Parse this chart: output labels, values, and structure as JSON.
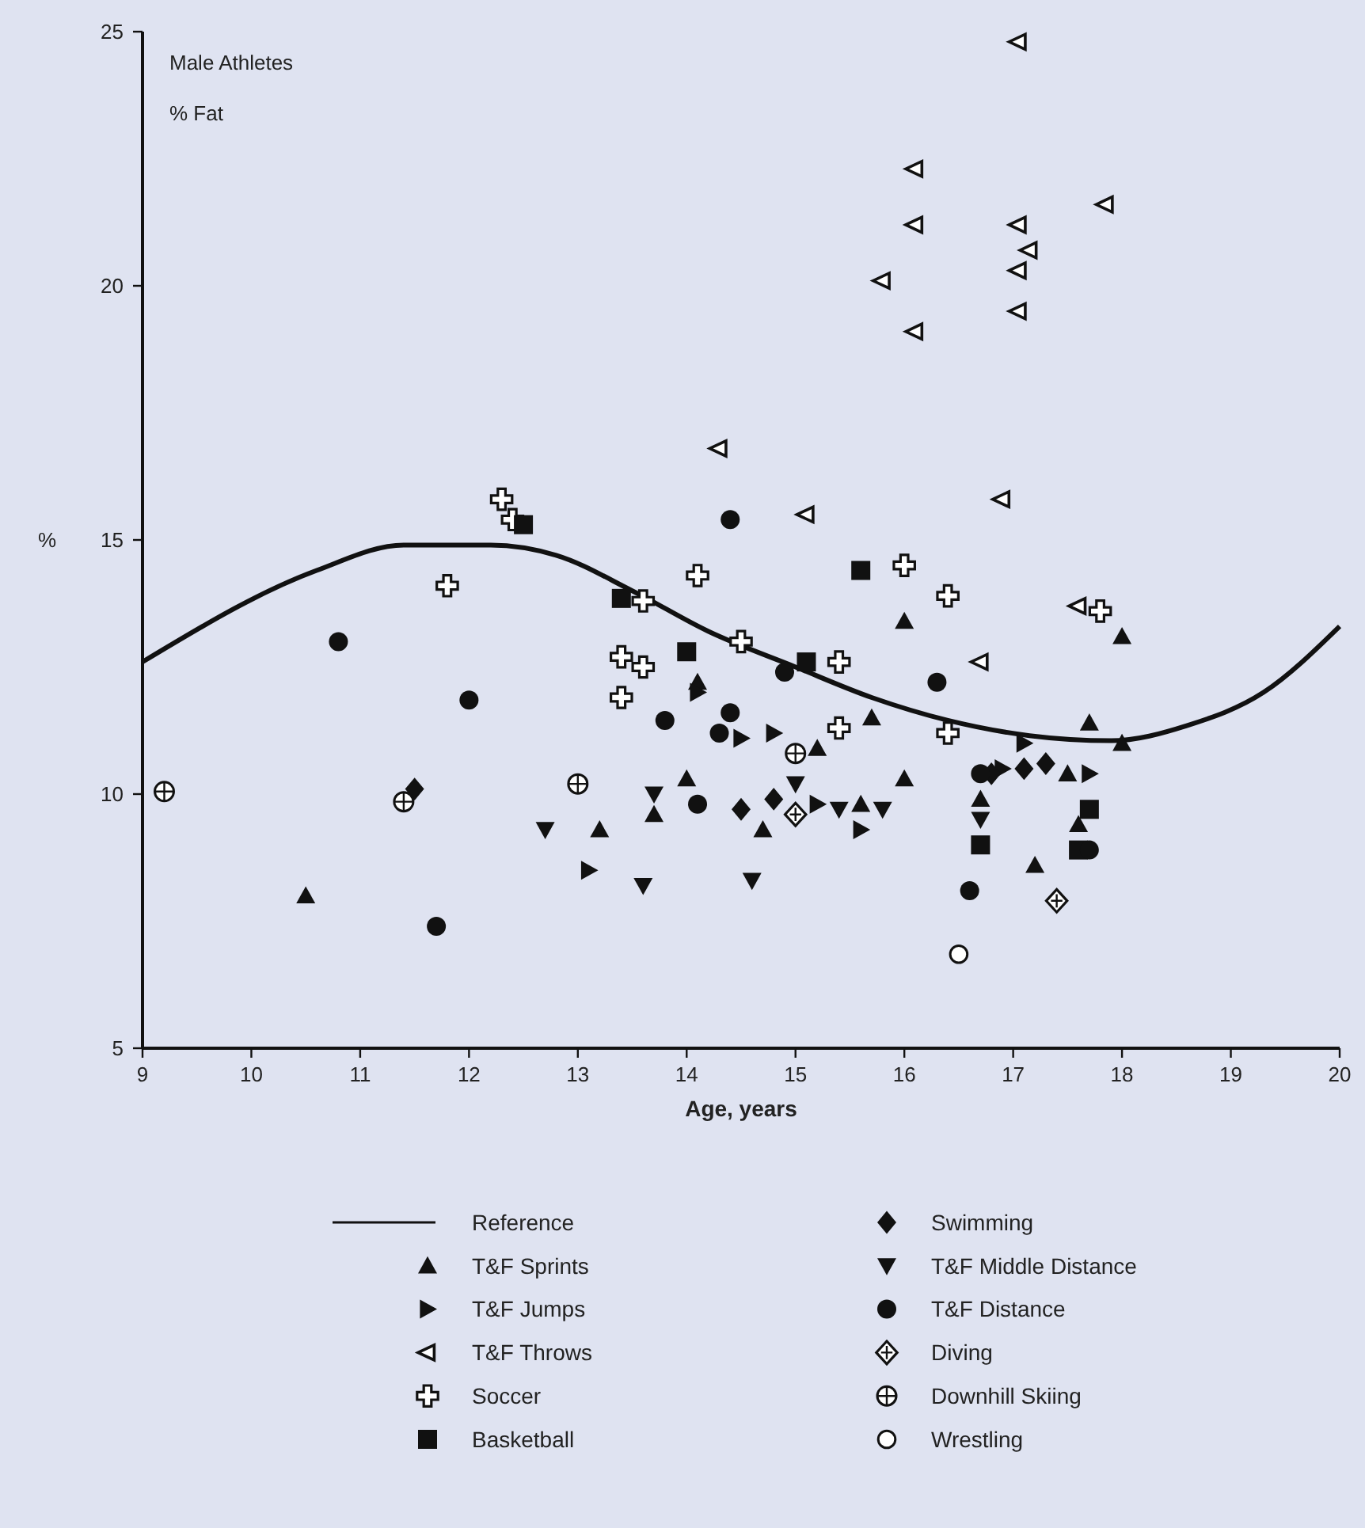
{
  "chart_data": {
    "type": "scatter",
    "xlabel": "Age, years",
    "ylabel": "%",
    "annotations": [
      "Male Athletes",
      "% Fat"
    ],
    "xlim": [
      9,
      20
    ],
    "xticks": [
      9,
      10,
      11,
      12,
      13,
      14,
      15,
      16,
      17,
      18,
      19,
      20
    ],
    "ylim": [
      5,
      25
    ],
    "yticks": [
      5,
      10,
      15,
      20,
      25
    ],
    "grid": false,
    "legend": "bottom",
    "series": [
      {
        "name": "Reference",
        "type": "line",
        "color": "#111111",
        "marker": "none",
        "line_style": "solid",
        "x": [
          9,
          10.6,
          11.4,
          12.2,
          12.8,
          13.5,
          14.2,
          15,
          15.7,
          16.4,
          17.15,
          17.9,
          18.6,
          19.3,
          20
        ],
        "values": [
          12.6,
          14.4,
          14.9,
          14.9,
          14.7,
          14.0,
          13.2,
          12.5,
          11.9,
          11.45,
          11.15,
          11.05,
          11.35,
          12.0,
          13.3
        ]
      },
      {
        "name": "T&F Sprints",
        "color": "#111111",
        "marker": "triangle-up",
        "x": [
          10.5,
          13.2,
          13.7,
          14.0,
          14.1,
          14.7,
          15.2,
          15.6,
          15.7,
          16.0,
          16.0,
          16.7,
          17.2,
          17.5,
          17.6,
          17.7,
          18.0,
          18.0
        ],
        "values": [
          8.0,
          9.3,
          9.6,
          10.3,
          12.2,
          9.3,
          10.9,
          9.8,
          11.5,
          13.4,
          10.3,
          9.9,
          8.6,
          10.4,
          9.4,
          11.4,
          13.1,
          11.0
        ]
      },
      {
        "name": "T&F Jumps",
        "color": "#111111",
        "marker": "triangle-right",
        "x": [
          13.1,
          14.1,
          14.5,
          14.8,
          15.2,
          15.6,
          16.9,
          17.1,
          17.7
        ],
        "values": [
          8.5,
          12.0,
          11.1,
          11.2,
          9.8,
          9.3,
          10.5,
          11.0,
          10.4
        ]
      },
      {
        "name": "T&F Throws",
        "color": "#111111",
        "marker": "triangle-left-open",
        "x": [
          14.3,
          15.1,
          15.8,
          16.1,
          16.1,
          16.1,
          16.7,
          16.9,
          17.05,
          17.05,
          17.05,
          17.05,
          17.15,
          17.6,
          17.85
        ],
        "values": [
          16.8,
          15.5,
          20.1,
          22.3,
          21.2,
          19.1,
          12.6,
          15.8,
          24.8,
          21.2,
          20.3,
          19.5,
          20.7,
          13.7,
          21.6
        ]
      },
      {
        "name": "Soccer",
        "color": "#111111",
        "marker": "cross-open",
        "x": [
          11.8,
          12.3,
          12.4,
          13.4,
          13.4,
          13.6,
          13.6,
          14.1,
          14.5,
          15.4,
          15.4,
          16.0,
          16.4,
          16.4,
          17.8
        ],
        "values": [
          14.1,
          15.8,
          15.4,
          12.7,
          11.9,
          12.5,
          13.8,
          14.3,
          13.0,
          12.6,
          11.3,
          14.5,
          13.9,
          11.2,
          13.6
        ]
      },
      {
        "name": "Basketball",
        "color": "#111111",
        "marker": "square",
        "x": [
          12.5,
          13.4,
          14.0,
          15.1,
          15.6,
          16.7,
          17.7,
          17.6
        ],
        "values": [
          15.3,
          13.85,
          12.8,
          12.6,
          14.4,
          9.0,
          9.7,
          8.9
        ]
      },
      {
        "name": "Swimming",
        "color": "#111111",
        "marker": "diamond",
        "x": [
          11.5,
          14.5,
          14.8,
          16.8,
          17.1,
          17.3
        ],
        "values": [
          10.1,
          9.7,
          9.9,
          10.4,
          10.5,
          10.6
        ]
      },
      {
        "name": "T&F Middle Distance",
        "color": "#111111",
        "marker": "triangle-down",
        "x": [
          12.7,
          13.6,
          13.7,
          14.6,
          15.0,
          15.4,
          15.8,
          16.7
        ],
        "values": [
          9.3,
          8.2,
          10.0,
          8.3,
          10.2,
          9.7,
          9.7,
          9.5
        ]
      },
      {
        "name": "T&F Distance",
        "color": "#111111",
        "marker": "circle",
        "x": [
          10.8,
          11.7,
          12.0,
          13.8,
          14.1,
          14.3,
          14.4,
          14.4,
          14.9,
          16.3,
          16.6,
          16.7,
          17.7
        ],
        "values": [
          13.0,
          7.4,
          11.85,
          11.45,
          9.8,
          11.2,
          11.6,
          15.4,
          12.4,
          12.2,
          8.1,
          10.4,
          8.9
        ]
      },
      {
        "name": "Diving",
        "color": "#111111",
        "marker": "diamond-cross",
        "x": [
          15.0,
          17.4
        ],
        "values": [
          9.6,
          7.9
        ]
      },
      {
        "name": "Downhill Skiing",
        "color": "#111111",
        "marker": "circle-cross",
        "x": [
          9.2,
          11.4,
          13.0,
          15.0
        ],
        "values": [
          10.05,
          9.85,
          10.2,
          10.8
        ]
      },
      {
        "name": "Wrestling",
        "color": "#111111",
        "marker": "circle-open",
        "x": [
          16.5
        ],
        "values": [
          6.85
        ]
      }
    ]
  }
}
